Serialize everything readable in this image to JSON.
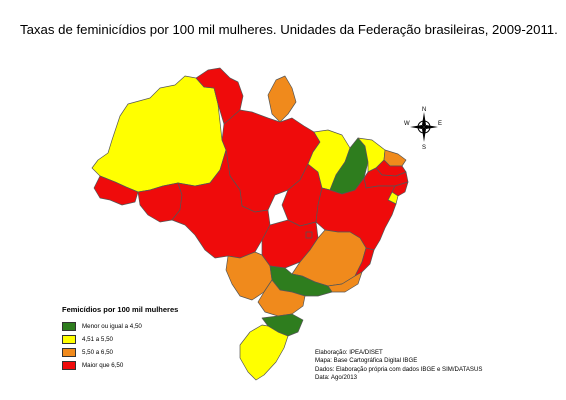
{
  "title": "Taxas de feminicídios por 100 mil mulheres. Unidades da Federação brasileiras, 2009-2011.",
  "colors": {
    "green": "#2e7d1e",
    "yellow": "#ffff00",
    "orange": "#f08a1c",
    "red": "#ef0b0b"
  },
  "map": {
    "states": [
      {
        "uf": "Amazonas",
        "class": "4,51 a 5,50"
      },
      {
        "uf": "Roraima",
        "class": "Maior que 6,50"
      },
      {
        "uf": "Amapá",
        "class": "5,50 a 6,50"
      },
      {
        "uf": "Pará",
        "class": "Maior que 6,50"
      },
      {
        "uf": "Acre",
        "class": "Maior que 6,50"
      },
      {
        "uf": "Rondônia",
        "class": "Maior que 6,50"
      },
      {
        "uf": "Mato Grosso",
        "class": "Maior que 6,50"
      },
      {
        "uf": "Tocantins",
        "class": "Maior que 6,50"
      },
      {
        "uf": "Maranhão",
        "class": "4,51 a 5,50"
      },
      {
        "uf": "Piauí",
        "class": "Menor ou igual a 4,50"
      },
      {
        "uf": "Ceará",
        "class": "4,51 a 5,50"
      },
      {
        "uf": "Rio Grande do Norte",
        "class": "5,50 a 6,50"
      },
      {
        "uf": "Paraíba",
        "class": "Maior que 6,50"
      },
      {
        "uf": "Pernambuco",
        "class": "Maior que 6,50"
      },
      {
        "uf": "Alagoas",
        "class": "Maior que 6,50"
      },
      {
        "uf": "Sergipe",
        "class": "4,51 a 5,50"
      },
      {
        "uf": "Bahia",
        "class": "Maior que 6,50"
      },
      {
        "uf": "Goiás",
        "class": "Maior que 6,50"
      },
      {
        "uf": "Distrito Federal",
        "class": "Maior que 6,50"
      },
      {
        "uf": "Minas Gerais",
        "class": "5,50 a 6,50"
      },
      {
        "uf": "Espírito Santo",
        "class": "Maior que 6,50"
      },
      {
        "uf": "Rio de Janeiro",
        "class": "5,50 a 6,50"
      },
      {
        "uf": "Mato Grosso do Sul",
        "class": "5,50 a 6,50"
      },
      {
        "uf": "São Paulo",
        "class": "Menor ou igual a 4,50"
      },
      {
        "uf": "Paraná",
        "class": "5,50 a 6,50"
      },
      {
        "uf": "Santa Catarina",
        "class": "Menor ou igual a 4,50"
      },
      {
        "uf": "Rio Grande do Sul",
        "class": "4,51 a 5,50"
      }
    ]
  },
  "legend": {
    "title": "Femicídios por 100 mil mulheres",
    "items": [
      {
        "label": "Menor ou igual a 4,50",
        "color": "#2e7d1e"
      },
      {
        "label": "4,51 a 5,50",
        "color": "#ffff00"
      },
      {
        "label": "5,50 a 6,50",
        "color": "#f08a1c"
      },
      {
        "label": "Maior que 6,50",
        "color": "#ef0b0b"
      }
    ]
  },
  "compass": {
    "n": "N",
    "s": "S",
    "e": "E",
    "w": "W"
  },
  "credits": [
    "Elaboração: IPEA/DISET",
    "Mapa: Base Cartográfica Digital IBGE",
    "Dados: Elaboração própria com dados IBGE e SIM/DATASUS",
    "Data: Ago/2013"
  ]
}
